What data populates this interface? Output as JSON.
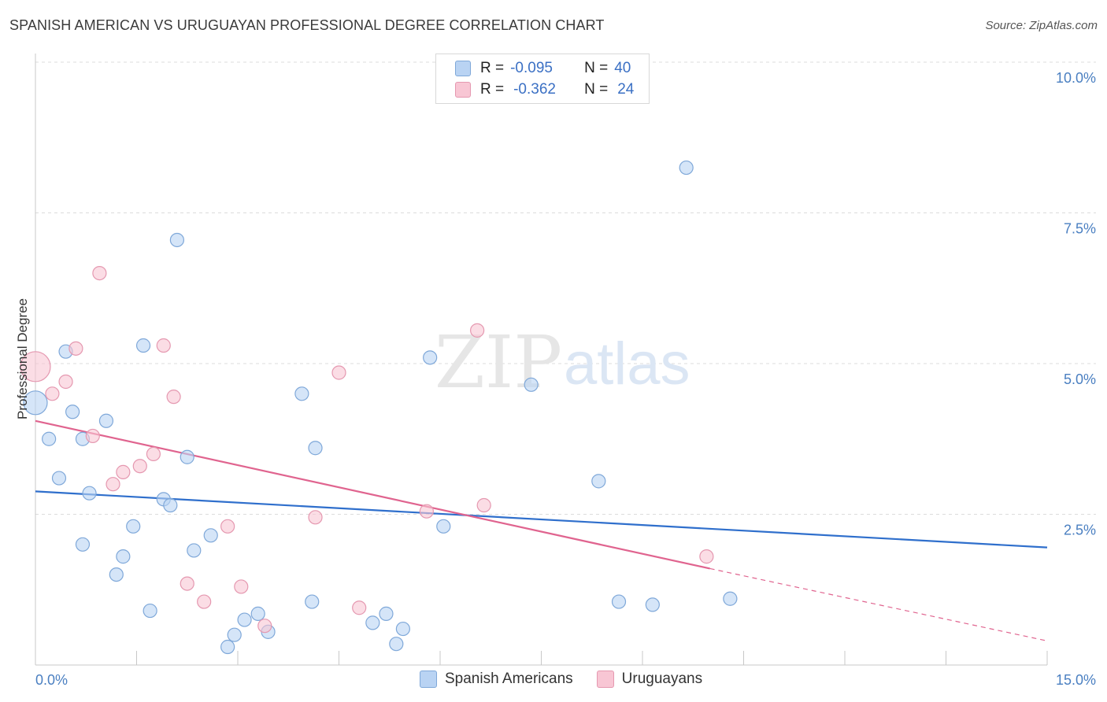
{
  "header": {
    "title": "SPANISH AMERICAN VS URUGUAYAN PROFESSIONAL DEGREE CORRELATION CHART",
    "source": "Source: ZipAtlas.com"
  },
  "legend": {
    "rows": [
      {
        "r_label": "R =",
        "r_value": "-0.095",
        "n_label": "N =",
        "n_value": "40"
      },
      {
        "r_label": "R =",
        "r_value": "-0.362",
        "n_label": "N =",
        "n_value": "24"
      }
    ]
  },
  "bottom_legend": {
    "items": [
      {
        "label": "Spanish Americans"
      },
      {
        "label": "Uruguayans"
      }
    ]
  },
  "watermark": {
    "zip": "ZIP",
    "atlas": "atlas"
  },
  "colors": {
    "blue_fill": "#b9d3f3",
    "blue_stroke": "#7fa8d9",
    "blue_line": "#2f6fcc",
    "pink_fill": "#f8c6d4",
    "pink_stroke": "#e598b0",
    "pink_line": "#e0648f",
    "grid": "#dcdcdc",
    "tick_text": "#4a7fc1"
  },
  "chart_data": {
    "type": "scatter",
    "title": "SPANISH AMERICAN VS URUGUAYAN PROFESSIONAL DEGREE CORRELATION CHART",
    "xlabel": "",
    "ylabel": "Professional Degree",
    "xlim": [
      0,
      15
    ],
    "ylim": [
      0,
      10
    ],
    "x_tick_labels": [
      "0.0%",
      "15.0%"
    ],
    "y_ticks": [
      2.5,
      5.0,
      7.5,
      10.0
    ],
    "y_tick_labels": [
      "2.5%",
      "5.0%",
      "7.5%",
      "10.0%"
    ],
    "grid": true,
    "series": [
      {
        "name": "Spanish Americans",
        "color": "#b9d3f3",
        "points": [
          [
            0.0,
            4.35
          ],
          [
            0.2,
            3.75
          ],
          [
            0.35,
            3.1
          ],
          [
            0.45,
            5.2
          ],
          [
            0.55,
            4.2
          ],
          [
            0.7,
            2.0
          ],
          [
            0.7,
            3.75
          ],
          [
            0.8,
            2.85
          ],
          [
            1.05,
            4.05
          ],
          [
            1.2,
            1.5
          ],
          [
            1.3,
            1.8
          ],
          [
            1.45,
            2.3
          ],
          [
            1.6,
            5.3
          ],
          [
            1.7,
            0.9
          ],
          [
            1.9,
            2.75
          ],
          [
            2.0,
            2.65
          ],
          [
            2.1,
            7.05
          ],
          [
            2.25,
            3.45
          ],
          [
            2.35,
            1.9
          ],
          [
            2.6,
            2.15
          ],
          [
            2.85,
            0.3
          ],
          [
            2.95,
            0.5
          ],
          [
            3.1,
            0.75
          ],
          [
            3.3,
            0.85
          ],
          [
            3.45,
            0.55
          ],
          [
            3.95,
            4.5
          ],
          [
            4.1,
            1.05
          ],
          [
            4.15,
            3.6
          ],
          [
            5.0,
            0.7
          ],
          [
            5.2,
            0.85
          ],
          [
            5.35,
            0.35
          ],
          [
            5.45,
            0.6
          ],
          [
            5.85,
            5.1
          ],
          [
            6.05,
            2.3
          ],
          [
            7.35,
            4.65
          ],
          [
            8.35,
            3.05
          ],
          [
            8.65,
            1.05
          ],
          [
            9.15,
            1.0
          ],
          [
            9.65,
            8.25
          ],
          [
            10.3,
            1.1
          ]
        ],
        "trend": {
          "x": [
            0,
            15
          ],
          "y": [
            2.88,
            1.95
          ]
        }
      },
      {
        "name": "Uruguayans",
        "color": "#f8c6d4",
        "points": [
          [
            0.0,
            4.95
          ],
          [
            0.25,
            4.5
          ],
          [
            0.45,
            4.7
          ],
          [
            0.6,
            5.25
          ],
          [
            0.85,
            3.8
          ],
          [
            0.95,
            6.5
          ],
          [
            1.15,
            3.0
          ],
          [
            1.3,
            3.2
          ],
          [
            1.55,
            3.3
          ],
          [
            1.75,
            3.5
          ],
          [
            1.9,
            5.3
          ],
          [
            2.05,
            4.45
          ],
          [
            2.25,
            1.35
          ],
          [
            2.5,
            1.05
          ],
          [
            2.85,
            2.3
          ],
          [
            3.05,
            1.3
          ],
          [
            3.4,
            0.65
          ],
          [
            4.15,
            2.45
          ],
          [
            4.5,
            4.85
          ],
          [
            4.8,
            0.95
          ],
          [
            5.8,
            2.55
          ],
          [
            6.55,
            5.55
          ],
          [
            6.65,
            2.65
          ],
          [
            9.95,
            1.8
          ]
        ],
        "trend": {
          "x": [
            0,
            10.0
          ],
          "y": [
            4.05,
            1.6
          ]
        },
        "trend_dashed": {
          "x": [
            10.0,
            15
          ],
          "y": [
            1.6,
            0.4
          ]
        }
      }
    ]
  }
}
